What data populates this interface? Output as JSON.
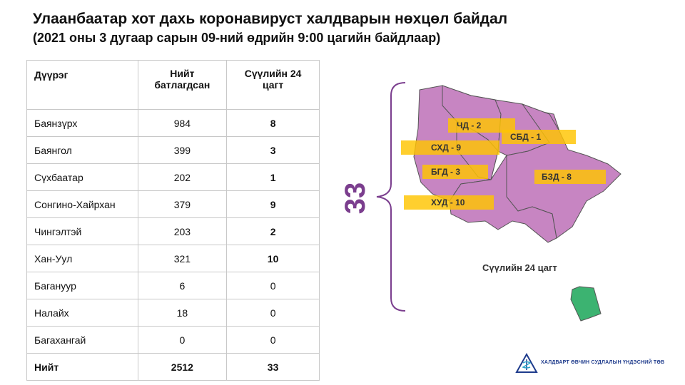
{
  "header": {
    "title": "Улаанбаатар хот дахь коронавируст халдварын нөхцөл байдал",
    "subtitle": "(2021 оны 3 дугаар сарын 09-ний өдрийн 9:00 цагийн байдлаар)"
  },
  "table": {
    "columns": [
      "Дүүрэг",
      "Нийт батлагдсан",
      "Сүүлийн 24 цагт"
    ],
    "rows": [
      {
        "district": "Баянзүрх",
        "total": "984",
        "last24": "8"
      },
      {
        "district": "Баянгол",
        "total": "399",
        "last24": "3"
      },
      {
        "district": "Сүхбаатар",
        "total": "202",
        "last24": "1"
      },
      {
        "district": "Сонгино-Хайрхан",
        "total": "379",
        "last24": "9"
      },
      {
        "district": "Чингэлтэй",
        "total": "203",
        "last24": "2"
      },
      {
        "district": "Хан-Уул",
        "total": "321",
        "last24": "10"
      },
      {
        "district": "Багануур",
        "total": "6",
        "last24": "0"
      },
      {
        "district": "Налайх",
        "total": "18",
        "last24": "0"
      },
      {
        "district": "Багахангай",
        "total": "0",
        "last24": "0"
      }
    ],
    "total_row": {
      "district": "Нийт",
      "total": "2512",
      "last24": "33"
    }
  },
  "map": {
    "total_label": "33",
    "caption": "Сүүлийн 24 цагт",
    "district_labels": {
      "chd": "ЧД - 2",
      "sbd": "СБД - 1",
      "shd": "СХД - 9",
      "bgd": "БГД - 3",
      "bzd": "БЗД - 8",
      "hud": "ХУД - 10"
    },
    "colors": {
      "district_fill": "#c785c2",
      "district_stroke": "#555555",
      "highlight_fill": "#ffc400",
      "nalaikh_fill": "#3cb371",
      "bracket": "#7b3e8e"
    }
  },
  "footer": {
    "org_name": "ХАЛДВАРТ ӨВЧИН СУДЛАЛЫН ҮНДЭСНИЙ ТӨВ"
  }
}
